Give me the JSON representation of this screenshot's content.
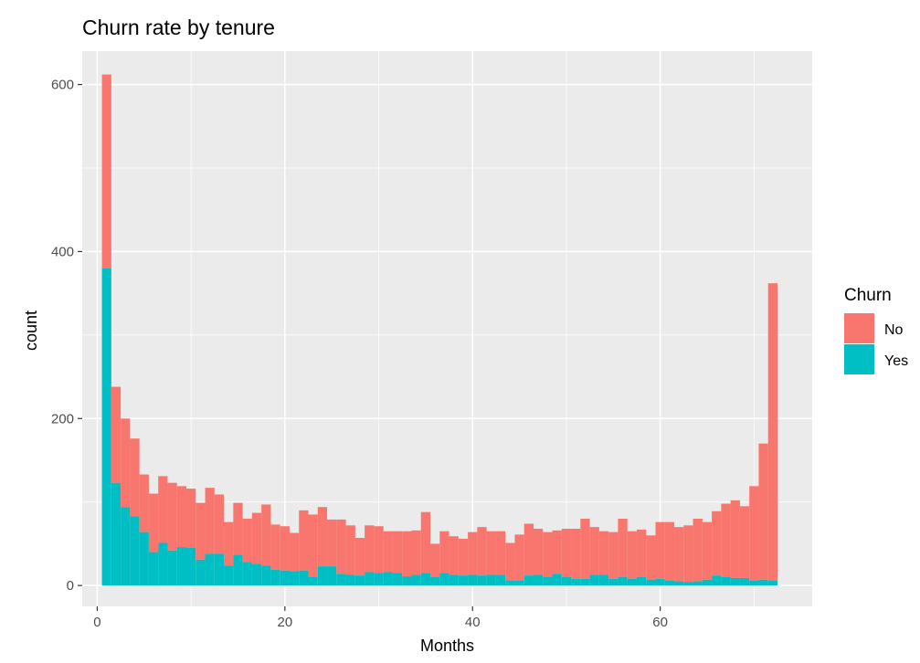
{
  "chart_data": {
    "type": "bar",
    "stacked": true,
    "title": "Churn rate by tenure",
    "xlabel": "Months",
    "ylabel": "count",
    "xlim": [
      -1.6,
      76.2
    ],
    "ylim": [
      -25,
      640
    ],
    "x_ticks": [
      0,
      20,
      40,
      60
    ],
    "y_ticks": [
      0,
      200,
      400,
      600
    ],
    "grid": true,
    "legend": {
      "title": "Churn",
      "position": "right"
    },
    "series_colors": {
      "No": "#F8766D",
      "Yes": "#00BFC4"
    },
    "panel_color": "#EBEBEB",
    "bins": {
      "start": 1,
      "width": 1,
      "totals": [
        612,
        238,
        200,
        176,
        133,
        110,
        131,
        123,
        119,
        116,
        99,
        117,
        109,
        76,
        99,
        80,
        87,
        97,
        73,
        71,
        63,
        90,
        85,
        94,
        79,
        79,
        72,
        57,
        72,
        71,
        65,
        65,
        65,
        66,
        88,
        50,
        65,
        59,
        56,
        64,
        70,
        65,
        65,
        51,
        61,
        74,
        68,
        64,
        66,
        68,
        68,
        80,
        70,
        65,
        64,
        80,
        65,
        67,
        60,
        76,
        76,
        70,
        72,
        80,
        76,
        89,
        98,
        102,
        95,
        119,
        170,
        362
      ],
      "yes": [
        380,
        123,
        94,
        83,
        64,
        40,
        51,
        42,
        46,
        45,
        31,
        38,
        38,
        24,
        37,
        28,
        26,
        24,
        19,
        18,
        17,
        18,
        10,
        23,
        23,
        14,
        13,
        12,
        16,
        15,
        16,
        15,
        11,
        13,
        15,
        10,
        15,
        13,
        12,
        13,
        12,
        13,
        13,
        6,
        6,
        12,
        13,
        10,
        14,
        10,
        8,
        8,
        13,
        13,
        8,
        10,
        8,
        10,
        7,
        8,
        6,
        5,
        4,
        5,
        7,
        12,
        10,
        9,
        9,
        6,
        7,
        6
      ]
    }
  }
}
